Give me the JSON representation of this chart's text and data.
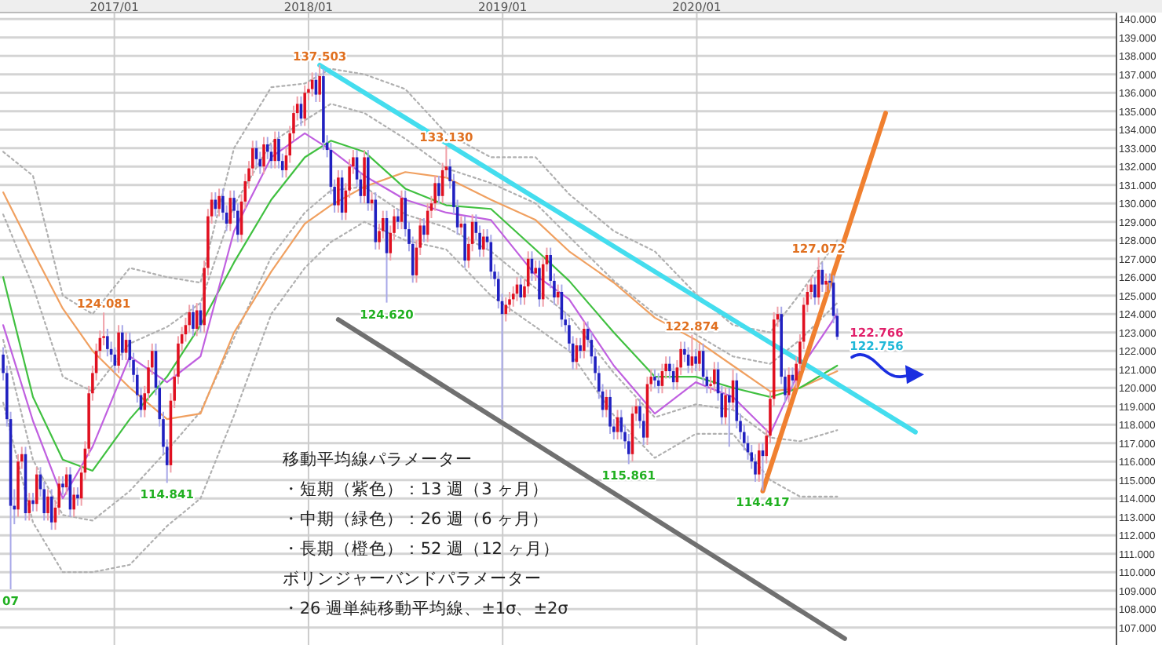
{
  "chart_data": {
    "type": "candlestick",
    "x": [
      "2016-06-06",
      "2016-06-13",
      "2016-06-20",
      "2016-06-27",
      "2016-07-04",
      "2016-07-11",
      "2016-07-18",
      "2016-07-25",
      "2016-08-01",
      "2016-08-08",
      "2016-08-15",
      "2016-08-22",
      "2016-08-29",
      "2016-09-05",
      "2016-09-12",
      "2016-09-19",
      "2016-09-26",
      "2016-10-03",
      "2016-10-10",
      "2016-10-17",
      "2016-10-24",
      "2016-10-31",
      "2016-11-07",
      "2016-11-14",
      "2016-11-21",
      "2016-11-28",
      "2016-12-05",
      "2016-12-12",
      "2016-12-19",
      "2016-12-26",
      "2017-01-02",
      "2017-01-09",
      "2017-01-16",
      "2017-01-23",
      "2017-01-30",
      "2017-02-06",
      "2017-02-13",
      "2017-02-20",
      "2017-02-27",
      "2017-03-06",
      "2017-03-13",
      "2017-03-20",
      "2017-03-27",
      "2017-04-03",
      "2017-04-10",
      "2017-04-17",
      "2017-04-24",
      "2017-05-01",
      "2017-05-08",
      "2017-05-15",
      "2017-05-22",
      "2017-05-29",
      "2017-06-05",
      "2017-06-12",
      "2017-06-19",
      "2017-06-26",
      "2017-07-03",
      "2017-07-10",
      "2017-07-17",
      "2017-07-24",
      "2017-07-31",
      "2017-08-07",
      "2017-08-14",
      "2017-08-21",
      "2017-08-28",
      "2017-09-04",
      "2017-09-11",
      "2017-09-18",
      "2017-09-25",
      "2017-10-02",
      "2017-10-09",
      "2017-10-16",
      "2017-10-23",
      "2017-10-30",
      "2017-11-06",
      "2017-11-13",
      "2017-11-20",
      "2017-11-27",
      "2017-12-04",
      "2017-12-11",
      "2017-12-18",
      "2017-12-25",
      "2018-01-01",
      "2018-01-08",
      "2018-01-15",
      "2018-01-22",
      "2018-01-29",
      "2018-02-05",
      "2018-02-12",
      "2018-02-19",
      "2018-02-26",
      "2018-03-05",
      "2018-03-12",
      "2018-03-19",
      "2018-03-26",
      "2018-04-02",
      "2018-04-09",
      "2018-04-16",
      "2018-04-23",
      "2018-04-30",
      "2018-05-07",
      "2018-05-14",
      "2018-05-21",
      "2018-05-28",
      "2018-06-04",
      "2018-06-11",
      "2018-06-18",
      "2018-06-25",
      "2018-07-02",
      "2018-07-09",
      "2018-07-16",
      "2018-07-23",
      "2018-07-30",
      "2018-08-06",
      "2018-08-13",
      "2018-08-20",
      "2018-08-27",
      "2018-09-03",
      "2018-09-10",
      "2018-09-17",
      "2018-09-24",
      "2018-10-01",
      "2018-10-08",
      "2018-10-15",
      "2018-10-22",
      "2018-10-29",
      "2018-11-05",
      "2018-11-12",
      "2018-11-19",
      "2018-11-26",
      "2018-12-03",
      "2018-12-10",
      "2018-12-17",
      "2018-12-24",
      "2018-12-31",
      "2019-01-07",
      "2019-01-14",
      "2019-01-21",
      "2019-01-28",
      "2019-02-04",
      "2019-02-11",
      "2019-02-18",
      "2019-02-25",
      "2019-03-04",
      "2019-03-11",
      "2019-03-18",
      "2019-03-25",
      "2019-04-01",
      "2019-04-08",
      "2019-04-15",
      "2019-04-22",
      "2019-04-29",
      "2019-05-06",
      "2019-05-13",
      "2019-05-20",
      "2019-05-27",
      "2019-06-03",
      "2019-06-10",
      "2019-06-17",
      "2019-06-24",
      "2019-07-01",
      "2019-07-08",
      "2019-07-15",
      "2019-07-22",
      "2019-07-29",
      "2019-08-05",
      "2019-08-12",
      "2019-08-19",
      "2019-08-26",
      "2019-09-02",
      "2019-09-09",
      "2019-09-16",
      "2019-09-23",
      "2019-09-30",
      "2019-10-07",
      "2019-10-14",
      "2019-10-21",
      "2019-10-28",
      "2019-11-04",
      "2019-11-11",
      "2019-11-18",
      "2019-11-25",
      "2019-12-02",
      "2019-12-09",
      "2019-12-16",
      "2019-12-23",
      "2019-12-30",
      "2020-01-06",
      "2020-01-13",
      "2020-01-20",
      "2020-01-27",
      "2020-02-03",
      "2020-02-10",
      "2020-02-17",
      "2020-02-24",
      "2020-03-02",
      "2020-03-09",
      "2020-03-16",
      "2020-03-23",
      "2020-03-30",
      "2020-04-06",
      "2020-04-13",
      "2020-04-20",
      "2020-04-27",
      "2020-05-04",
      "2020-05-11",
      "2020-05-18",
      "2020-05-25",
      "2020-06-01",
      "2020-06-08",
      "2020-06-15",
      "2020-06-22",
      "2020-06-29",
      "2020-07-06",
      "2020-07-13",
      "2020-07-20",
      "2020-07-27",
      "2020-08-03",
      "2020-08-10",
      "2020-08-17",
      "2020-08-24",
      "2020-08-31",
      "2020-09-07",
      "2020-09-14",
      "2020-09-21"
    ],
    "ohlc": [
      [
        121.8,
        122.2,
        120.4,
        120.8
      ],
      [
        120.8,
        121.2,
        117.9,
        118.3
      ],
      [
        118.3,
        118.7,
        109.07,
        113.6
      ],
      [
        113.6,
        114.5,
        112.6,
        113.4
      ],
      [
        113.4,
        116.4,
        113.0,
        116.0
      ],
      [
        116.0,
        116.8,
        115.6,
        116.4
      ],
      [
        116.4,
        116.8,
        112.8,
        113.2
      ],
      [
        113.2,
        114.3,
        112.8,
        113.9
      ],
      [
        113.9,
        114.3,
        113.3,
        113.7
      ],
      [
        113.7,
        115.7,
        113.3,
        115.3
      ],
      [
        115.3,
        115.7,
        114.1,
        114.5
      ],
      [
        114.5,
        114.9,
        112.8,
        113.2
      ],
      [
        113.2,
        114.5,
        112.8,
        114.1
      ],
      [
        114.1,
        114.5,
        112.3,
        112.7
      ],
      [
        112.7,
        113.9,
        112.3,
        113.5
      ],
      [
        113.5,
        115.2,
        113.1,
        114.8
      ],
      [
        114.8,
        115.2,
        114.2,
        114.6
      ],
      [
        114.6,
        115.7,
        114.2,
        115.3
      ],
      [
        115.3,
        115.7,
        113.0,
        113.4
      ],
      [
        113.4,
        114.6,
        113.0,
        114.2
      ],
      [
        114.2,
        114.6,
        113.6,
        114.0
      ],
      [
        114.0,
        115.8,
        113.6,
        115.4
      ],
      [
        115.4,
        117.1,
        115.0,
        116.7
      ],
      [
        116.7,
        120.1,
        116.3,
        119.7
      ],
      [
        119.7,
        121.2,
        119.3,
        120.8
      ],
      [
        120.8,
        122.4,
        120.4,
        122.0
      ],
      [
        122.0,
        123.1,
        121.6,
        122.7
      ],
      [
        122.7,
        124.081,
        122.3,
        122.8
      ],
      [
        122.8,
        123.2,
        121.7,
        122.1
      ],
      [
        122.1,
        122.5,
        121.4,
        121.8
      ],
      [
        121.8,
        122.2,
        120.8,
        121.2
      ],
      [
        121.2,
        123.4,
        120.8,
        123.0
      ],
      [
        123.0,
        123.4,
        121.5,
        121.9
      ],
      [
        121.9,
        123.0,
        121.5,
        122.6
      ],
      [
        122.6,
        123.0,
        121.1,
        121.5
      ],
      [
        121.5,
        121.9,
        120.3,
        120.7
      ],
      [
        120.7,
        121.1,
        119.2,
        119.6
      ],
      [
        119.6,
        120.0,
        118.4,
        118.8
      ],
      [
        118.8,
        120.1,
        118.4,
        119.7
      ],
      [
        119.7,
        121.5,
        119.3,
        121.1
      ],
      [
        121.1,
        122.4,
        120.7,
        122.0
      ],
      [
        122.0,
        122.4,
        119.6,
        120.0
      ],
      [
        120.0,
        120.4,
        117.9,
        118.3
      ],
      [
        118.3,
        118.7,
        116.4,
        116.8
      ],
      [
        116.8,
        117.2,
        114.841,
        115.8
      ],
      [
        115.8,
        119.7,
        115.4,
        119.3
      ],
      [
        119.3,
        121.0,
        118.9,
        120.6
      ],
      [
        120.6,
        122.8,
        120.2,
        122.4
      ],
      [
        122.4,
        123.3,
        122.0,
        122.9
      ],
      [
        122.9,
        123.8,
        122.5,
        123.4
      ],
      [
        123.4,
        124.5,
        123.0,
        124.1
      ],
      [
        124.1,
        124.5,
        122.8,
        123.2
      ],
      [
        123.2,
        124.6,
        122.8,
        124.2
      ],
      [
        124.2,
        124.6,
        123.0,
        123.4
      ],
      [
        123.4,
        126.9,
        123.0,
        126.5
      ],
      [
        126.5,
        129.7,
        126.1,
        129.3
      ],
      [
        129.3,
        130.6,
        128.9,
        130.2
      ],
      [
        130.2,
        130.6,
        129.3,
        129.7
      ],
      [
        129.7,
        130.8,
        129.3,
        130.4
      ],
      [
        130.4,
        130.8,
        129.1,
        129.5
      ],
      [
        129.5,
        129.9,
        128.5,
        128.9
      ],
      [
        128.9,
        130.7,
        128.5,
        130.3
      ],
      [
        130.3,
        130.7,
        129.2,
        129.6
      ],
      [
        129.6,
        130.0,
        127.9,
        128.3
      ],
      [
        128.3,
        130.5,
        127.9,
        130.1
      ],
      [
        130.1,
        131.6,
        129.7,
        131.2
      ],
      [
        131.2,
        132.3,
        130.8,
        131.9
      ],
      [
        131.9,
        133.4,
        131.5,
        133.0
      ],
      [
        133.0,
        133.4,
        132.0,
        132.4
      ],
      [
        132.4,
        132.8,
        131.6,
        132.0
      ],
      [
        132.0,
        133.6,
        131.6,
        133.2
      ],
      [
        133.2,
        133.6,
        132.4,
        132.8
      ],
      [
        132.8,
        133.2,
        131.9,
        132.3
      ],
      [
        132.3,
        133.9,
        131.9,
        133.5
      ],
      [
        133.5,
        133.9,
        131.9,
        132.3
      ],
      [
        132.3,
        132.7,
        131.4,
        131.8
      ],
      [
        131.8,
        133.0,
        131.4,
        132.6
      ],
      [
        132.6,
        134.2,
        132.2,
        133.8
      ],
      [
        133.8,
        135.3,
        133.4,
        134.9
      ],
      [
        134.9,
        135.8,
        134.5,
        135.4
      ],
      [
        135.4,
        135.8,
        134.2,
        134.6
      ],
      [
        134.6,
        136.4,
        134.2,
        136.0
      ],
      [
        136.0,
        136.6,
        135.6,
        136.2
      ],
      [
        136.2,
        137.1,
        135.8,
        136.7
      ],
      [
        136.7,
        137.1,
        135.5,
        135.9
      ],
      [
        135.9,
        137.503,
        135.5,
        136.9
      ],
      [
        136.9,
        137.3,
        132.9,
        133.3
      ],
      [
        133.3,
        133.7,
        132.5,
        132.9
      ],
      [
        132.9,
        133.3,
        130.5,
        130.9
      ],
      [
        130.9,
        131.3,
        129.5,
        129.9
      ],
      [
        129.9,
        131.8,
        129.5,
        131.4
      ],
      [
        131.4,
        131.8,
        129.1,
        129.5
      ],
      [
        129.5,
        131.1,
        129.1,
        130.7
      ],
      [
        130.7,
        132.4,
        130.3,
        132.0
      ],
      [
        132.0,
        132.9,
        131.6,
        132.5
      ],
      [
        132.5,
        132.9,
        130.9,
        131.3
      ],
      [
        131.3,
        131.7,
        130.0,
        130.4
      ],
      [
        130.4,
        132.9,
        130.0,
        132.5
      ],
      [
        132.5,
        132.9,
        129.6,
        130.0
      ],
      [
        130.0,
        130.6,
        129.6,
        130.2
      ],
      [
        130.2,
        130.6,
        127.5,
        127.9
      ],
      [
        127.9,
        128.9,
        127.5,
        128.5
      ],
      [
        128.5,
        129.6,
        128.1,
        129.2
      ],
      [
        129.2,
        129.6,
        124.62,
        127.3
      ],
      [
        127.3,
        128.8,
        126.9,
        128.4
      ],
      [
        128.4,
        129.7,
        128.0,
        129.3
      ],
      [
        129.3,
        129.7,
        128.6,
        129.0
      ],
      [
        129.0,
        130.7,
        128.6,
        130.3
      ],
      [
        130.3,
        130.7,
        128.2,
        128.6
      ],
      [
        128.6,
        129.0,
        127.4,
        127.8
      ],
      [
        127.8,
        128.2,
        125.7,
        126.1
      ],
      [
        126.1,
        128.0,
        125.7,
        127.6
      ],
      [
        127.6,
        129.2,
        127.2,
        128.8
      ],
      [
        128.8,
        129.2,
        127.9,
        128.3
      ],
      [
        128.3,
        130.0,
        127.9,
        129.6
      ],
      [
        129.6,
        130.4,
        129.2,
        130.0
      ],
      [
        130.0,
        131.5,
        129.6,
        131.1
      ],
      [
        131.1,
        131.5,
        130.0,
        130.4
      ],
      [
        130.4,
        132.2,
        130.0,
        131.8
      ],
      [
        131.8,
        133.13,
        131.4,
        132.0
      ],
      [
        132.0,
        132.4,
        130.8,
        131.2
      ],
      [
        131.2,
        131.6,
        129.4,
        129.8
      ],
      [
        129.8,
        130.2,
        128.3,
        128.7
      ],
      [
        128.7,
        129.3,
        128.3,
        128.9
      ],
      [
        128.9,
        129.3,
        126.5,
        126.9
      ],
      [
        126.9,
        128.2,
        126.5,
        127.8
      ],
      [
        127.8,
        129.4,
        127.4,
        129.0
      ],
      [
        129.0,
        129.4,
        128.0,
        128.4
      ],
      [
        128.4,
        128.8,
        127.1,
        127.5
      ],
      [
        127.5,
        128.6,
        127.1,
        128.2
      ],
      [
        128.2,
        128.6,
        127.5,
        127.9
      ],
      [
        127.9,
        128.3,
        125.9,
        126.3
      ],
      [
        126.3,
        126.7,
        125.5,
        125.9
      ],
      [
        125.9,
        126.3,
        124.3,
        124.7
      ],
      [
        124.7,
        125.1,
        118.3,
        124.0
      ],
      [
        124.0,
        124.9,
        123.6,
        124.5
      ],
      [
        124.5,
        125.2,
        124.1,
        124.8
      ],
      [
        124.8,
        125.5,
        124.4,
        125.1
      ],
      [
        125.1,
        126.0,
        124.7,
        125.6
      ],
      [
        125.6,
        126.0,
        124.5,
        124.9
      ],
      [
        124.9,
        125.9,
        124.5,
        125.5
      ],
      [
        125.5,
        127.4,
        125.1,
        127.0
      ],
      [
        127.0,
        127.4,
        125.8,
        126.2
      ],
      [
        126.2,
        126.9,
        125.8,
        126.5
      ],
      [
        126.5,
        126.9,
        124.4,
        124.8
      ],
      [
        124.8,
        127.1,
        124.4,
        126.7
      ],
      [
        126.7,
        127.6,
        126.3,
        127.2
      ],
      [
        127.2,
        127.6,
        125.4,
        125.8
      ],
      [
        125.8,
        126.2,
        124.5,
        124.9
      ],
      [
        124.9,
        125.6,
        124.5,
        125.2
      ],
      [
        125.2,
        125.6,
        123.3,
        123.7
      ],
      [
        123.7,
        124.1,
        123.0,
        123.4
      ],
      [
        123.4,
        123.8,
        122.0,
        122.4
      ],
      [
        122.4,
        122.8,
        121.0,
        121.4
      ],
      [
        121.4,
        122.7,
        121.0,
        122.3
      ],
      [
        122.3,
        122.7,
        121.6,
        122.0
      ],
      [
        122.0,
        123.6,
        121.6,
        123.2
      ],
      [
        123.2,
        123.6,
        122.2,
        122.6
      ],
      [
        122.6,
        123.0,
        121.3,
        121.7
      ],
      [
        121.7,
        122.1,
        120.4,
        120.8
      ],
      [
        120.8,
        121.2,
        119.4,
        119.8
      ],
      [
        119.8,
        120.2,
        118.4,
        118.8
      ],
      [
        118.8,
        119.9,
        118.4,
        119.5
      ],
      [
        119.5,
        119.9,
        117.5,
        117.9
      ],
      [
        117.9,
        118.3,
        117.2,
        117.6
      ],
      [
        117.6,
        118.8,
        117.2,
        118.4
      ],
      [
        118.4,
        118.8,
        117.2,
        117.6
      ],
      [
        117.6,
        118.0,
        116.7,
        117.1
      ],
      [
        117.1,
        117.5,
        115.861,
        116.4
      ],
      [
        116.4,
        119.0,
        116.0,
        118.6
      ],
      [
        118.6,
        119.4,
        118.2,
        119.0
      ],
      [
        119.0,
        119.4,
        117.8,
        118.2
      ],
      [
        118.2,
        118.6,
        116.9,
        117.3
      ],
      [
        117.3,
        120.6,
        116.9,
        120.2
      ],
      [
        120.2,
        121.0,
        119.8,
        120.6
      ],
      [
        120.6,
        121.0,
        120.0,
        120.4
      ],
      [
        120.4,
        120.8,
        119.7,
        120.1
      ],
      [
        120.1,
        121.3,
        119.7,
        120.9
      ],
      [
        120.9,
        121.7,
        120.5,
        121.3
      ],
      [
        121.3,
        121.7,
        120.5,
        120.9
      ],
      [
        120.9,
        121.3,
        119.9,
        120.3
      ],
      [
        120.3,
        121.5,
        119.9,
        121.1
      ],
      [
        121.1,
        122.5,
        120.7,
        122.1
      ],
      [
        122.1,
        122.5,
        121.4,
        121.8
      ],
      [
        121.8,
        122.2,
        120.8,
        121.2
      ],
      [
        121.2,
        122.874,
        120.8,
        121.7
      ],
      [
        121.7,
        122.1,
        120.9,
        121.3
      ],
      [
        121.3,
        122.4,
        120.9,
        122.0
      ],
      [
        122.0,
        122.4,
        120.2,
        120.6
      ],
      [
        120.6,
        121.0,
        119.7,
        120.1
      ],
      [
        120.1,
        120.6,
        119.7,
        120.2
      ],
      [
        120.2,
        121.4,
        119.8,
        121.0
      ],
      [
        121.0,
        121.4,
        119.3,
        119.7
      ],
      [
        119.7,
        120.1,
        118.0,
        118.4
      ],
      [
        118.4,
        120.0,
        118.0,
        119.6
      ],
      [
        119.6,
        120.0,
        116.8,
        119.2
      ],
      [
        119.2,
        121.0,
        118.8,
        120.4
      ],
      [
        120.4,
        120.8,
        117.8,
        118.2
      ],
      [
        118.2,
        118.6,
        117.2,
        117.6
      ],
      [
        117.6,
        118.0,
        116.6,
        117.0
      ],
      [
        117.0,
        117.4,
        116.1,
        116.5
      ],
      [
        116.5,
        116.9,
        115.6,
        116.0
      ],
      [
        116.0,
        116.4,
        114.9,
        115.3
      ],
      [
        115.3,
        117.0,
        114.9,
        116.6
      ],
      [
        116.6,
        117.0,
        114.417,
        116.3
      ],
      [
        116.3,
        117.8,
        115.9,
        117.4
      ],
      [
        117.4,
        119.8,
        117.0,
        119.4
      ],
      [
        119.4,
        124.1,
        119.0,
        123.7
      ],
      [
        123.7,
        124.4,
        123.3,
        124.0
      ],
      [
        124.0,
        124.4,
        120.2,
        120.6
      ],
      [
        120.6,
        121.0,
        119.2,
        119.6
      ],
      [
        119.6,
        121.1,
        119.2,
        120.7
      ],
      [
        120.7,
        121.1,
        120.0,
        120.4
      ],
      [
        120.4,
        121.7,
        120.0,
        121.3
      ],
      [
        121.3,
        122.9,
        120.9,
        122.5
      ],
      [
        122.5,
        124.9,
        122.1,
        124.5
      ],
      [
        124.5,
        125.6,
        124.1,
        125.2
      ],
      [
        125.2,
        126.0,
        124.8,
        125.6
      ],
      [
        125.6,
        126.0,
        124.5,
        124.9
      ],
      [
        124.9,
        127.072,
        124.5,
        126.4
      ],
      [
        126.4,
        126.8,
        125.2,
        125.6
      ],
      [
        125.6,
        126.2,
        125.2,
        125.8
      ],
      [
        125.8,
        126.2,
        125.3,
        125.7
      ],
      [
        125.7,
        126.1,
        123.5,
        123.9
      ],
      [
        123.9,
        124.3,
        122.6,
        122.766
      ]
    ],
    "series": [
      {
        "type": "line",
        "color": "#b0b0b0",
        "line_style": "dotted",
        "x": [
          "2016-06-06",
          "2016-08-01",
          "2016-09-26",
          "2016-11-21",
          "2017-01-30",
          "2017-04-10",
          "2017-06-12",
          "2017-08-14",
          "2017-10-23",
          "2017-12-25",
          "2018-02-12",
          "2018-04-16",
          "2018-07-02",
          "2018-09-17",
          "2018-12-10",
          "2019-03-04",
          "2019-05-06",
          "2019-07-29",
          "2019-10-14",
          "2019-12-30",
          "2020-03-09",
          "2020-05-18",
          "2020-07-13",
          "2020-09-21"
        ],
        "values": [
          132.8,
          131.5,
          125.0,
          124.0,
          126.5,
          126.0,
          125.7,
          133.0,
          136.3,
          136.5,
          137.3,
          137.0,
          136.2,
          133.8,
          132.5,
          132.5,
          130.5,
          128.5,
          127.4,
          125.1,
          123.4,
          123.0,
          125.1,
          128.0
        ]
      },
      {
        "type": "line",
        "color": "#b0b0b0",
        "line_style": "dotted",
        "x": [
          "2016-06-06",
          "2016-08-01",
          "2016-09-26",
          "2016-11-21",
          "2017-01-30",
          "2017-04-10",
          "2017-06-12",
          "2017-08-14",
          "2017-10-23",
          "2017-12-25",
          "2018-02-12",
          "2018-04-16",
          "2018-07-02",
          "2018-09-17",
          "2018-12-10",
          "2019-03-04",
          "2019-05-06",
          "2019-07-29",
          "2019-10-14",
          "2019-12-30",
          "2020-03-09",
          "2020-05-18",
          "2020-07-13",
          "2020-09-21"
        ],
        "values": [
          129.4,
          125.5,
          120.6,
          119.8,
          122.4,
          123.3,
          124.6,
          129.9,
          133.3,
          134.5,
          135.4,
          134.9,
          133.5,
          131.9,
          131.1,
          130.0,
          128.2,
          125.8,
          124.0,
          122.9,
          121.7,
          121.3,
          122.6,
          124.6
        ]
      },
      {
        "type": "line",
        "color": "#b0b0b0",
        "line_style": "dotted",
        "x": [
          "2016-06-06",
          "2016-08-01",
          "2016-09-26",
          "2016-11-21",
          "2017-01-30",
          "2017-04-10",
          "2017-06-12",
          "2017-08-14",
          "2017-10-23",
          "2017-12-25",
          "2018-02-12",
          "2018-04-16",
          "2018-07-02",
          "2018-09-17",
          "2018-12-10",
          "2019-03-04",
          "2019-05-06",
          "2019-07-29",
          "2019-10-14",
          "2019-12-30",
          "2020-03-09",
          "2020-05-18",
          "2020-07-13",
          "2020-09-21"
        ],
        "values": [
          122.6,
          116.1,
          113.1,
          112.8,
          114.4,
          116.6,
          118.7,
          122.7,
          127.1,
          129.5,
          130.7,
          130.9,
          129.4,
          128.7,
          127.4,
          125.4,
          123.9,
          120.8,
          118.4,
          119.1,
          118.8,
          117.3,
          117.1,
          117.7
        ]
      },
      {
        "type": "line",
        "color": "#b0b0b0",
        "line_style": "dotted",
        "x": [
          "2016-06-06",
          "2016-08-01",
          "2016-09-26",
          "2016-11-21",
          "2017-01-30",
          "2017-04-10",
          "2017-06-12",
          "2017-08-14",
          "2017-10-23",
          "2017-12-25",
          "2018-02-12",
          "2018-04-16",
          "2018-07-02",
          "2018-09-17",
          "2018-12-10",
          "2019-03-04",
          "2019-05-06",
          "2019-07-29",
          "2019-10-14",
          "2019-12-30",
          "2020-03-09",
          "2020-05-18",
          "2020-07-13",
          "2020-09-21"
        ],
        "values": [
          119.2,
          112.7,
          110.0,
          110.0,
          110.4,
          112.5,
          114.0,
          118.5,
          124.0,
          126.5,
          127.9,
          129.0,
          128.0,
          127.5,
          125.0,
          123.3,
          122.0,
          118.5,
          116.2,
          117.5,
          117.5,
          115.0,
          114.1,
          114.1
        ]
      },
      {
        "type": "line",
        "color": "#f0a060",
        "line_style": "solid",
        "x": [
          "2016-06-06",
          "2016-08-01",
          "2016-09-26",
          "2016-11-21",
          "2017-01-30",
          "2017-04-10",
          "2017-06-12",
          "2017-08-14",
          "2017-10-23",
          "2017-12-25",
          "2018-02-12",
          "2018-04-16",
          "2018-07-02",
          "2018-09-17",
          "2018-12-10",
          "2019-03-04",
          "2019-05-06",
          "2019-07-29",
          "2019-10-14",
          "2019-12-30",
          "2020-03-09",
          "2020-05-18",
          "2020-07-13",
          "2020-09-21"
        ],
        "values": [
          130.6,
          127.4,
          124.3,
          122.0,
          120.0,
          118.3,
          118.6,
          123.0,
          126.3,
          128.9,
          129.9,
          130.9,
          131.7,
          131.4,
          130.2,
          129.1,
          127.4,
          125.7,
          123.8,
          122.6,
          121.2,
          119.8,
          120.0,
          120.9
        ]
      },
      {
        "type": "line",
        "color": "#40c040",
        "line_style": "solid",
        "x": [
          "2016-06-06",
          "2016-08-01",
          "2016-09-26",
          "2016-11-21",
          "2017-01-30",
          "2017-04-10",
          "2017-06-12",
          "2017-08-14",
          "2017-10-23",
          "2017-12-25",
          "2018-02-12",
          "2018-04-16",
          "2018-07-02",
          "2018-09-17",
          "2018-12-10",
          "2019-03-04",
          "2019-05-06",
          "2019-07-29",
          "2019-10-14",
          "2019-12-30",
          "2020-03-09",
          "2020-05-18",
          "2020-07-13",
          "2020-09-21"
        ],
        "values": [
          126.0,
          119.5,
          116.1,
          115.5,
          118.3,
          120.6,
          123.4,
          126.8,
          130.2,
          132.5,
          133.4,
          132.8,
          130.8,
          129.9,
          129.7,
          127.5,
          125.8,
          123.0,
          120.6,
          120.6,
          120.0,
          119.5,
          120.0,
          121.2
        ]
      },
      {
        "type": "line",
        "color": "#c060e0",
        "line_style": "solid",
        "x": [
          "2016-06-06",
          "2016-08-01",
          "2016-09-26",
          "2016-11-21",
          "2017-01-30",
          "2017-04-10",
          "2017-06-12",
          "2017-08-14",
          "2017-10-23",
          "2017-12-25",
          "2018-02-12",
          "2018-04-16",
          "2018-07-02",
          "2018-09-17",
          "2018-12-10",
          "2019-03-04",
          "2019-05-06",
          "2019-07-29",
          "2019-10-14",
          "2019-12-30",
          "2020-03-09",
          "2020-05-18",
          "2020-07-13",
          "2020-09-21"
        ],
        "values": [
          123.4,
          118.2,
          114.0,
          116.8,
          121.7,
          120.3,
          121.7,
          128.5,
          132.5,
          133.8,
          132.9,
          131.5,
          130.2,
          129.5,
          129.1,
          126.1,
          124.8,
          121.2,
          118.6,
          120.3,
          119.5,
          117.5,
          121.0,
          124.0
        ]
      },
      {
        "type": "line",
        "color": "#44ddee",
        "line_style": "solid",
        "x": [
          "2018-01-22",
          "2021-02-15"
        ],
        "values": [
          137.5,
          117.6
        ]
      },
      {
        "type": "line",
        "color": "#707070",
        "line_style": "solid",
        "x": [
          "2018-02-26",
          "2020-10-05"
        ],
        "values": [
          123.7,
          106.4
        ]
      },
      {
        "type": "line",
        "color": "#f08030",
        "line_style": "solid",
        "x": [
          "2020-05-04",
          "2020-12-21"
        ],
        "values": [
          114.4,
          134.9
        ]
      }
    ],
    "xlim": [
      "2016-05-31",
      "2022-02-28"
    ],
    "ylim": [
      106.05,
      140.35
    ],
    "xticks": [
      {
        "value": "2017-01-01",
        "label": "2017/01"
      },
      {
        "value": "2018-01-01",
        "label": "2018/01"
      },
      {
        "value": "2019-01-01",
        "label": "2019/01"
      },
      {
        "value": "2020-01-01",
        "label": "2020/01"
      }
    ],
    "yticks": [
      {
        "value": 107,
        "label": "107.000"
      },
      {
        "value": 108,
        "label": "108.000"
      },
      {
        "value": 109,
        "label": "109.000"
      },
      {
        "value": 110,
        "label": "110.000"
      },
      {
        "value": 111,
        "label": "111.000"
      },
      {
        "value": 112,
        "label": "112.000"
      },
      {
        "value": 113,
        "label": "113.000"
      },
      {
        "value": 114,
        "label": "114.000"
      },
      {
        "value": 115,
        "label": "115.000"
      },
      {
        "value": 116,
        "label": "116.000"
      },
      {
        "value": 117,
        "label": "117.000"
      },
      {
        "value": 118,
        "label": "118.000"
      },
      {
        "value": 119,
        "label": "119.000"
      },
      {
        "value": 120,
        "label": "120.000"
      },
      {
        "value": 121,
        "label": "121.000"
      },
      {
        "value": 122,
        "label": "122.000"
      },
      {
        "value": 123,
        "label": "123.000"
      },
      {
        "value": 124,
        "label": "124.000"
      },
      {
        "value": 125,
        "label": "125.000"
      },
      {
        "value": 126,
        "label": "126.000"
      },
      {
        "value": 127,
        "label": "127.000"
      },
      {
        "value": 128,
        "label": "128.000"
      },
      {
        "value": 129,
        "label": "129.000"
      },
      {
        "value": 130,
        "label": "130.000"
      },
      {
        "value": 131,
        "label": "131.000"
      },
      {
        "value": 132,
        "label": "132.000"
      },
      {
        "value": 133,
        "label": "133.000"
      },
      {
        "value": 134,
        "label": "134.000"
      },
      {
        "value": 135,
        "label": "135.000"
      },
      {
        "value": 136,
        "label": "136.000"
      },
      {
        "value": 137,
        "label": "137.000"
      },
      {
        "value": 138,
        "label": "138.000"
      },
      {
        "value": 139,
        "label": "139.000"
      },
      {
        "value": 140,
        "label": "140.000"
      }
    ],
    "grid": true,
    "annotations": [
      {
        "text": "07",
        "x": "2016-06-20",
        "y": 109.07
      },
      {
        "text": "124.081",
        "x": "2016-12-12",
        "y": 124.081
      },
      {
        "text": "114.841",
        "x": "2017-04-10",
        "y": 114.841
      },
      {
        "text": "137.503",
        "x": "2018-01-22",
        "y": 137.503
      },
      {
        "text": "124.620",
        "x": "2018-05-28",
        "y": 124.62
      },
      {
        "text": "133.130",
        "x": "2018-09-17",
        "y": 133.13
      },
      {
        "text": "115.861",
        "x": "2019-08-26",
        "y": 115.861
      },
      {
        "text": "122.874",
        "x": "2019-12-23",
        "y": 122.874
      },
      {
        "text": "114.417",
        "x": "2020-05-04",
        "y": 114.417
      },
      {
        "text": "127.072",
        "x": "2020-08-17",
        "y": 127.072
      },
      {
        "text": "122.766",
        "x": "2020-09-21",
        "y": 122.766
      },
      {
        "text": "122.756",
        "x": "2020-09-21",
        "y": 122.756
      },
      "移動平均線パラメーター",
      "・短期（紫色）：13 週（3 ヶ月）",
      "・中期（緑色）：26 週（6 ヶ月）",
      "・長期（橙色）：52 週（12 ヶ月）",
      "ボリンジャーバンドパラメーター",
      "・26 週単純移動平均線、±1σ、±2σ"
    ]
  }
}
